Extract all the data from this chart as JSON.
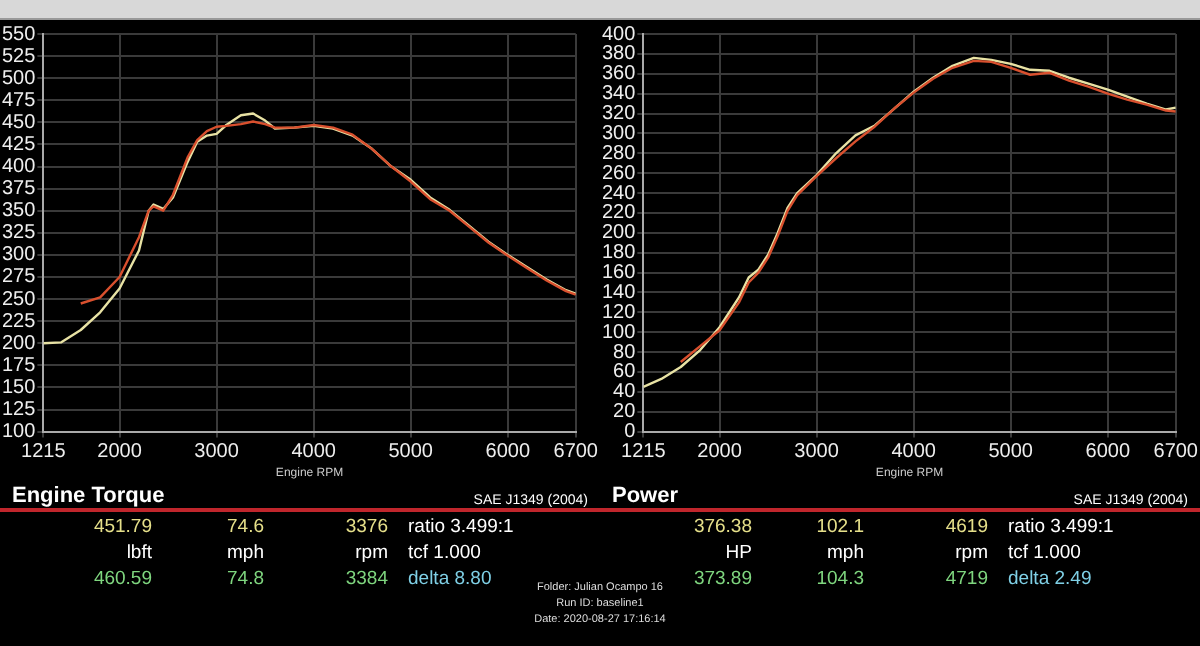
{
  "chart_data": [
    {
      "type": "line",
      "title": "Engine Torque",
      "xlabel": "Engine RPM",
      "x": [
        1215,
        1400,
        1600,
        1800,
        2000,
        2200,
        2300,
        2350,
        2450,
        2550,
        2700,
        2800,
        2900,
        3000,
        3100,
        3250,
        3376,
        3500,
        3600,
        3800,
        4000,
        4200,
        4400,
        4600,
        4800,
        5000,
        5200,
        5400,
        5600,
        5800,
        6000,
        6200,
        6400,
        6600,
        6700
      ],
      "series": [
        {
          "color": "#d9502e",
          "values": [
            null,
            null,
            245,
            252,
            275,
            320,
            350,
            355,
            350,
            368,
            410,
            430,
            440,
            445,
            446,
            448,
            451,
            448,
            444,
            444,
            447,
            444,
            436,
            420,
            400,
            383,
            363,
            350,
            332,
            314,
            299,
            285,
            271,
            259,
            255
          ]
        },
        {
          "color": "#e8e2a4",
          "values": [
            200,
            201,
            215,
            235,
            262,
            305,
            350,
            357,
            352,
            365,
            405,
            428,
            435,
            437,
            447,
            458,
            460,
            452,
            443,
            444,
            446,
            443,
            435,
            420,
            400,
            385,
            365,
            351,
            333,
            315,
            300,
            286,
            272,
            260,
            256
          ]
        }
      ],
      "xlim": [
        1215,
        6700
      ],
      "xticks": [
        1215,
        2000,
        3000,
        4000,
        5000,
        6000,
        6700
      ],
      "ylim": [
        100,
        550
      ],
      "yticks": [
        100,
        125,
        150,
        175,
        200,
        225,
        250,
        275,
        300,
        325,
        350,
        375,
        400,
        425,
        450,
        475,
        500,
        525,
        550
      ],
      "grid": true,
      "legend": false,
      "marker": "none",
      "line_style": "solid",
      "annotations": [
        "SAE J1349 (2004)",
        "451.79",
        "74.6",
        "3376",
        "ratio 3.499:1",
        "lbft",
        "mph",
        "rpm",
        "tcf 1.000",
        "460.59",
        "74.8",
        "3384",
        "delta 8.80",
        "Folder:  Julian Ocampo 16",
        "Run ID:  baseline1",
        "Date:  2020-08-27 17:16:14"
      ]
    },
    {
      "type": "line",
      "title": "Power",
      "xlabel": "Engine RPM",
      "x": [
        1215,
        1400,
        1600,
        1800,
        2000,
        2200,
        2300,
        2400,
        2500,
        2600,
        2700,
        2800,
        3000,
        3200,
        3400,
        3600,
        3800,
        4000,
        4200,
        4400,
        4619,
        4800,
        5000,
        5200,
        5400,
        5600,
        5800,
        6000,
        6200,
        6400,
        6600,
        6700
      ],
      "series": [
        {
          "color": "#d9502e",
          "values": [
            null,
            null,
            70,
            86,
            102,
            130,
            150,
            160,
            175,
            197,
            222,
            238,
            257,
            275,
            292,
            307,
            325,
            341,
            355,
            366,
            373,
            372,
            366,
            359,
            361,
            353,
            347,
            340,
            334,
            329,
            323,
            322
          ]
        },
        {
          "color": "#e8e2a4",
          "values": [
            45,
            53,
            65,
            82,
            105,
            135,
            155,
            163,
            178,
            200,
            225,
            240,
            258,
            280,
            298,
            308,
            325,
            342,
            356,
            368,
            376,
            374,
            370,
            364,
            363,
            356,
            350,
            344,
            337,
            330,
            324,
            326
          ]
        }
      ],
      "xlim": [
        1215,
        6700
      ],
      "xticks": [
        1215,
        2000,
        3000,
        4000,
        5000,
        6000,
        6700
      ],
      "ylim": [
        0,
        400
      ],
      "yticks": [
        0,
        20,
        40,
        60,
        80,
        100,
        120,
        140,
        160,
        180,
        200,
        220,
        240,
        260,
        280,
        300,
        320,
        340,
        360,
        380,
        400
      ],
      "grid": true,
      "legend": false,
      "marker": "none",
      "line_style": "solid",
      "annotations": [
        "SAE J1349 (2004)",
        "376.38",
        "102.1",
        "4619",
        "ratio 3.499:1",
        "HP",
        "mph",
        "rpm",
        "tcf 1.000",
        "373.89",
        "104.3",
        "4719",
        "delta 2.49"
      ]
    }
  ]
}
